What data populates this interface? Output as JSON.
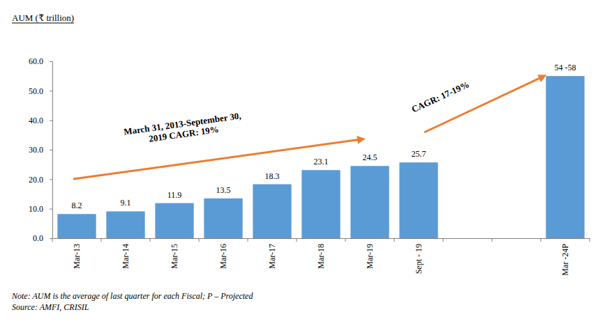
{
  "chart_data": {
    "type": "bar",
    "title": "AUM (₹ trillion)",
    "categories": [
      "Mar-13",
      "Mar-14",
      "Mar-15",
      "Mar-16",
      "Mar-17",
      "Mar-18",
      "Mar-19",
      "Sept - 19",
      null,
      null,
      "Mar -24P"
    ],
    "values": [
      8.2,
      9.1,
      11.9,
      13.5,
      18.3,
      23.1,
      24.5,
      25.7,
      null,
      null,
      55
    ],
    "value_labels": [
      "8.2",
      "9.1",
      "11.9",
      "13.5",
      "18.3",
      "23.1",
      "24.5",
      "25.7",
      null,
      null,
      "54 -58"
    ],
    "data_labels": true,
    "color": "#5b9bd5",
    "ylim": [
      0,
      60
    ],
    "yticks": [
      {
        "value": 0,
        "label": "0.0"
      },
      {
        "value": 10,
        "label": "10.0"
      },
      {
        "value": 20,
        "label": "20.0"
      },
      {
        "value": 30,
        "label": "30.0"
      },
      {
        "value": 40,
        "label": "40.0"
      },
      {
        "value": 50,
        "label": "50.0"
      },
      {
        "value": 60,
        "label": "60.0"
      }
    ],
    "grid": false,
    "annotations": [
      {
        "lines": [
          "March 31, 2013-September 30,",
          "2019 CAGR: 19%"
        ]
      },
      {
        "lines": [
          "CAGR: 17-19%"
        ]
      }
    ],
    "notes": [
      "Note: AUM is the average of last quarter for each Fiscal; P – Projected",
      "Source: AMFI, CRISIL"
    ]
  }
}
